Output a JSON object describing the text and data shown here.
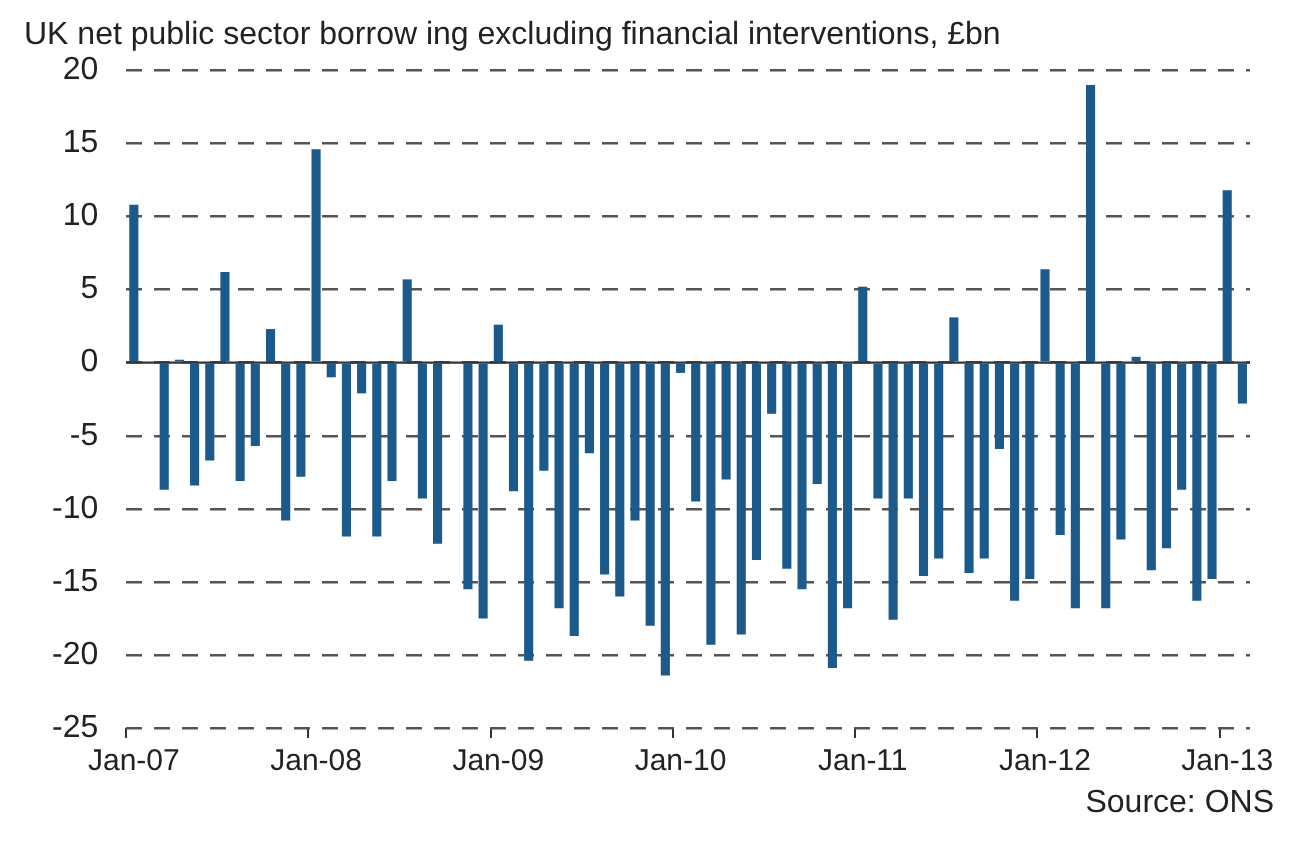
{
  "chart_data": {
    "type": "bar",
    "title": "UK net public sector borrow ing excluding financial interventions, £bn",
    "categories": [
      "Jan-07",
      null,
      null,
      null,
      null,
      null,
      null,
      null,
      null,
      null,
      null,
      null,
      "Jan-08",
      null,
      null,
      null,
      null,
      null,
      null,
      null,
      null,
      null,
      null,
      null,
      "Jan-09",
      null,
      null,
      null,
      null,
      null,
      null,
      null,
      null,
      null,
      null,
      null,
      "Jan-10",
      null,
      null,
      null,
      null,
      null,
      null,
      null,
      null,
      null,
      null,
      null,
      "Jan-11",
      null,
      null,
      null,
      null,
      null,
      null,
      null,
      null,
      null,
      null,
      null,
      "Jan-12",
      null,
      null,
      null,
      null,
      null,
      null,
      null,
      null,
      null,
      null,
      null,
      "Jan-13",
      null
    ],
    "values": [
      10.8,
      0,
      -8.7,
      0.2,
      -8.4,
      -6.7,
      6.2,
      -8.1,
      -5.7,
      2.3,
      -10.8,
      -7.8,
      14.6,
      -1.0,
      -11.9,
      -2.1,
      -11.9,
      -8.1,
      5.7,
      -9.3,
      -12.4,
      0,
      -15.5,
      -17.5,
      2.6,
      -8.8,
      -20.4,
      -7.4,
      -16.8,
      -18.7,
      -6.2,
      -14.5,
      -16.0,
      -10.8,
      -18.0,
      -21.4,
      -0.7,
      -9.5,
      -19.3,
      -8.0,
      -18.6,
      -13.5,
      -3.5,
      -14.1,
      -15.5,
      -8.3,
      -20.9,
      -16.8,
      5.2,
      -9.3,
      -17.6,
      -9.3,
      -14.6,
      -13.4,
      3.1,
      -14.4,
      -13.4,
      -5.9,
      -16.3,
      -14.8,
      6.4,
      -11.8,
      -16.8,
      19.0,
      -16.8,
      -12.1,
      0.4,
      -14.2,
      -12.7,
      -8.7,
      -16.3,
      -14.8,
      11.8,
      -2.8
    ],
    "color": "#1b5a8a",
    "ylim": [
      -25,
      20
    ],
    "yticks": [
      -25,
      -20,
      -15,
      -10,
      -5,
      0,
      5,
      10,
      15,
      20
    ],
    "grid": "y",
    "annotations": [
      "Source: ONS"
    ]
  }
}
